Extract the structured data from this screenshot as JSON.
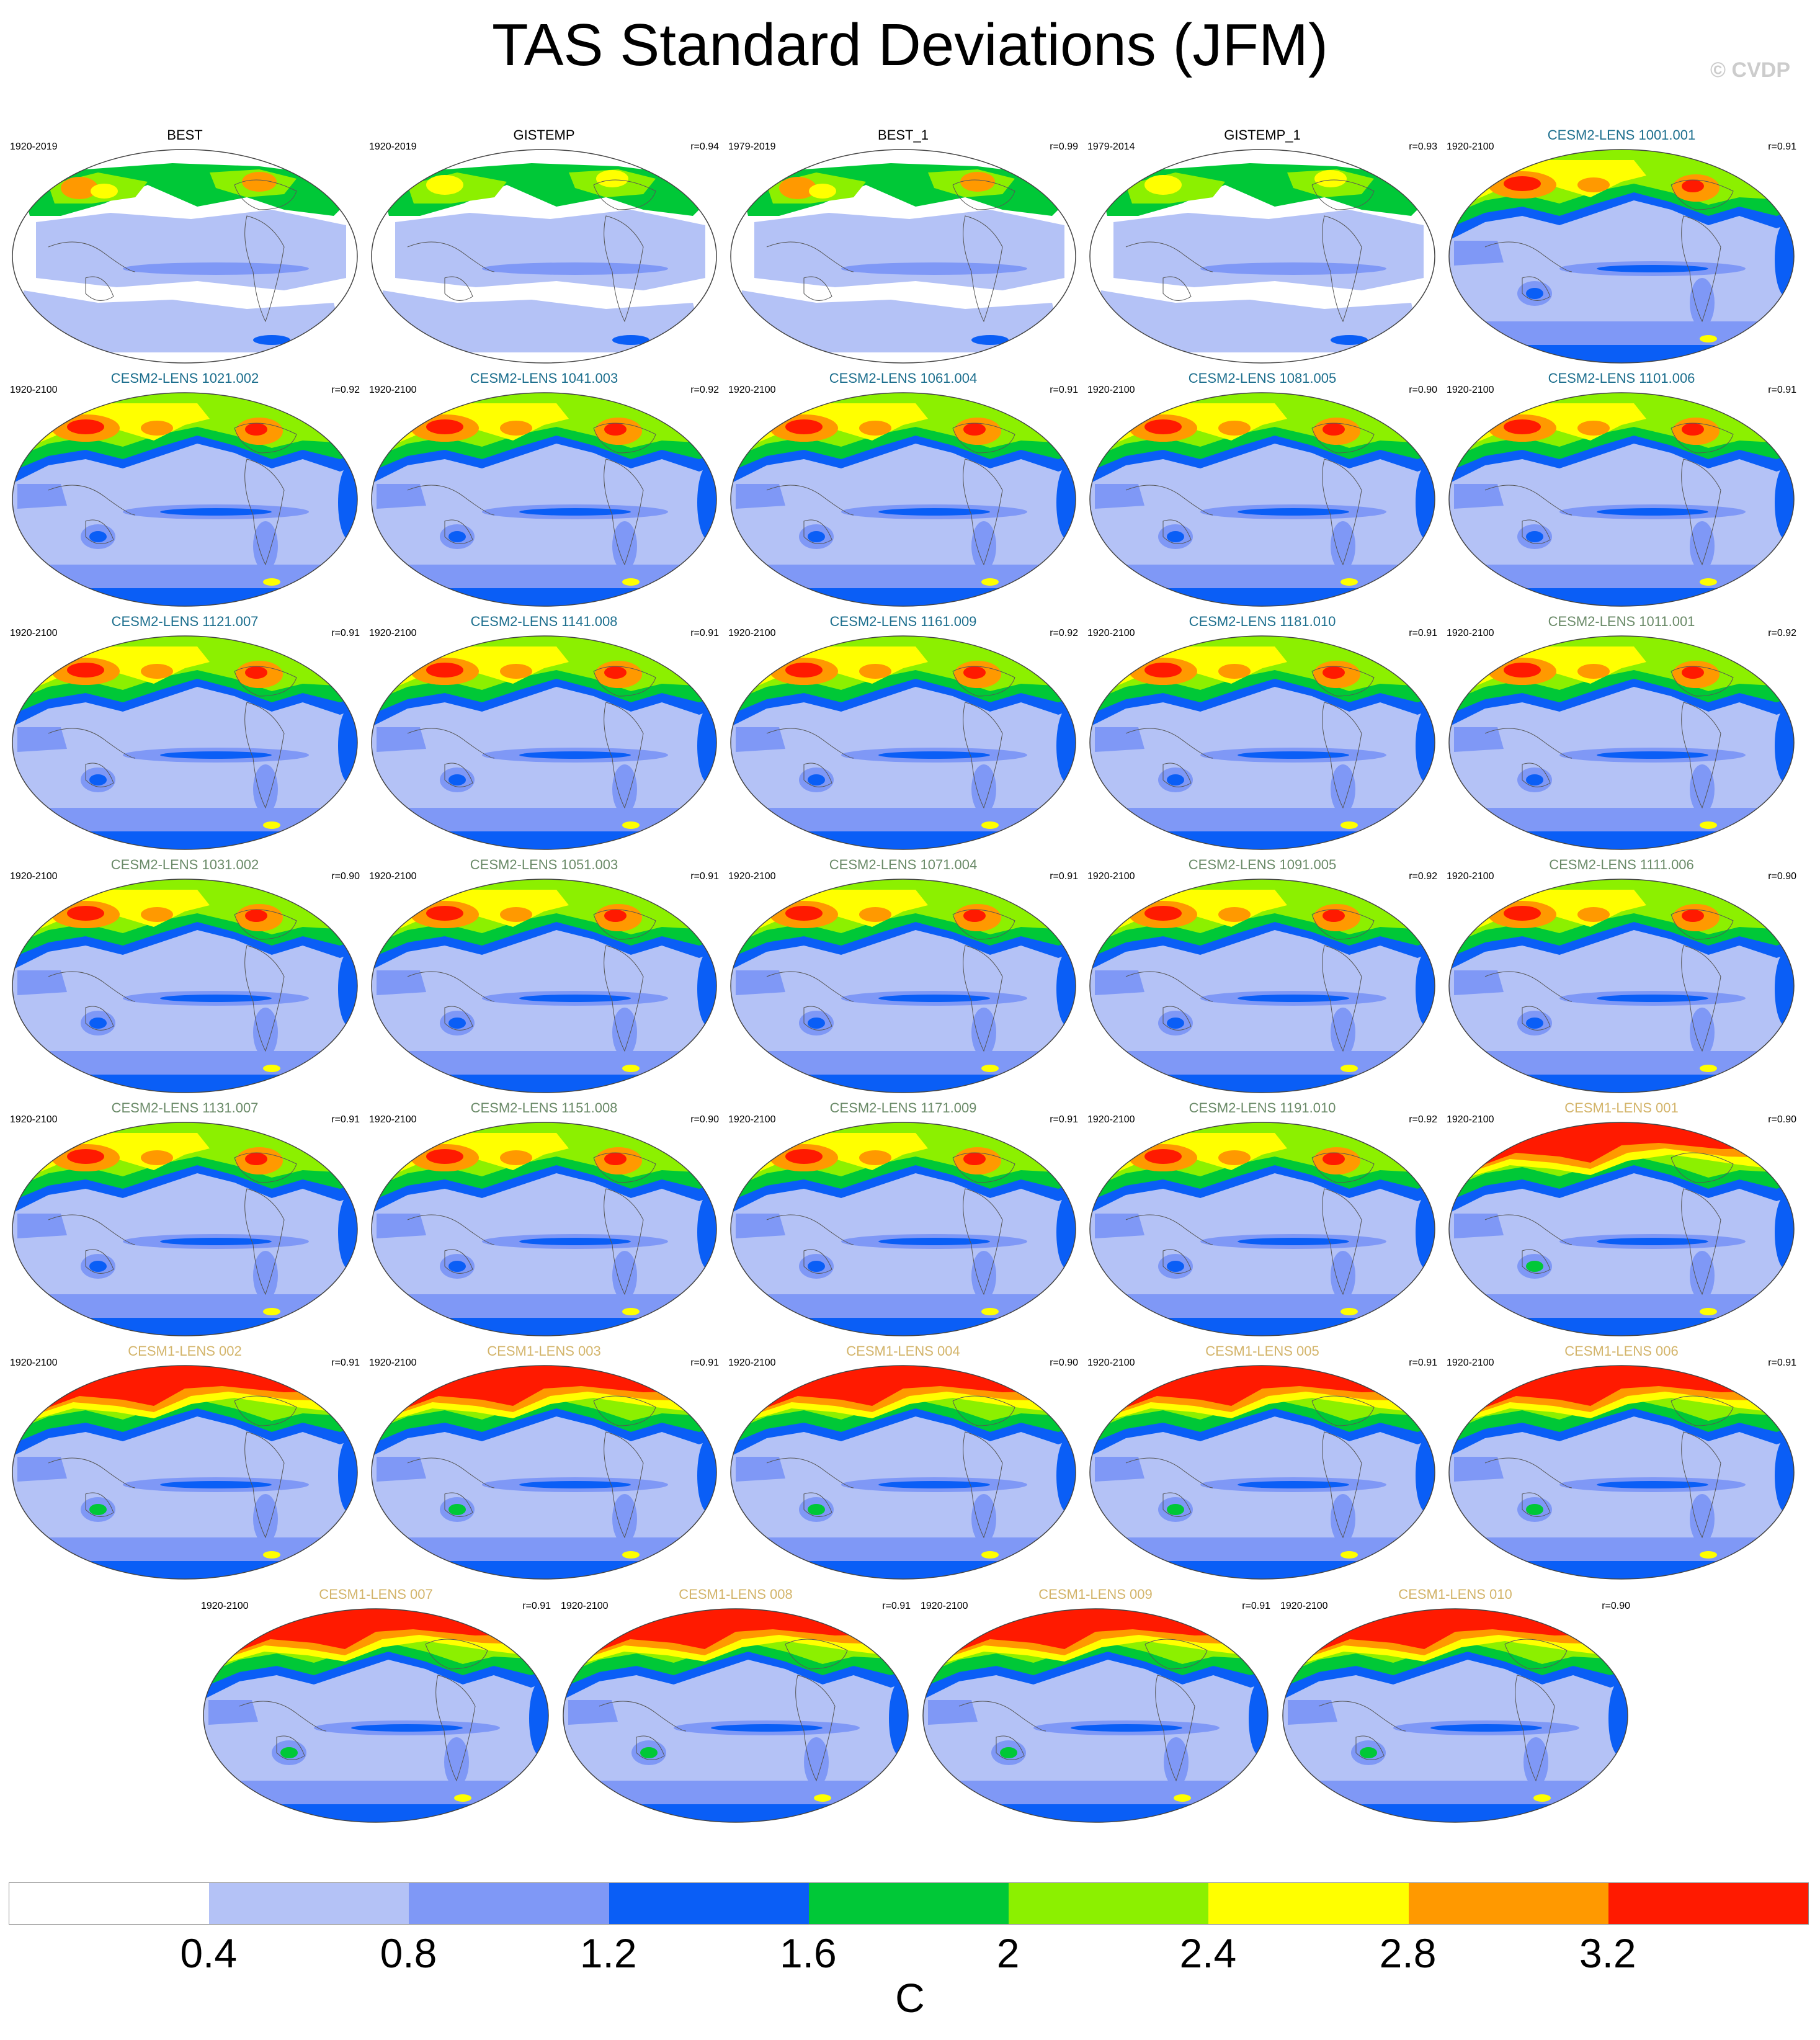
{
  "title": "TAS Standard Deviations (JFM)",
  "watermark": "© CVDP",
  "colorbar": {
    "colors": [
      "#ffffff",
      "#b4c2f6",
      "#7f98f6",
      "#0a5ef6",
      "#00c837",
      "#8cf000",
      "#ffff00",
      "#ff9900",
      "#ff1a00"
    ],
    "tick_labels": [
      "0.4",
      "0.8",
      "1.2",
      "1.6",
      "2",
      "2.4",
      "2.8",
      "3.2"
    ],
    "units": "C"
  },
  "title_colors": {
    "obs": "#000000",
    "cesm2_smbb": "#1d6f8e",
    "cesm2_cmip6": "#6a8a68",
    "cesm1": "#d3b46a"
  },
  "panels": [
    {
      "title": "BEST",
      "period": "1920-2019",
      "corr": "",
      "group": "obs",
      "style": "obs"
    },
    {
      "title": "GISTEMP",
      "period": "1920-2019",
      "corr": "r=0.94",
      "group": "obs",
      "style": "obs2"
    },
    {
      "title": "BEST_1",
      "period": "1979-2019",
      "corr": "r=0.99",
      "group": "obs",
      "style": "obs"
    },
    {
      "title": "GISTEMP_1",
      "period": "1979-2014",
      "corr": "r=0.93",
      "group": "obs",
      "style": "obs2"
    },
    {
      "title": "CESM2-LENS 1001.001",
      "period": "1920-2100",
      "corr": "r=0.91",
      "group": "cesm2_smbb",
      "style": "c2"
    },
    {
      "title": "CESM2-LENS 1021.002",
      "period": "1920-2100",
      "corr": "r=0.92",
      "group": "cesm2_smbb",
      "style": "c2"
    },
    {
      "title": "CESM2-LENS 1041.003",
      "period": "1920-2100",
      "corr": "r=0.92",
      "group": "cesm2_smbb",
      "style": "c2"
    },
    {
      "title": "CESM2-LENS 1061.004",
      "period": "1920-2100",
      "corr": "r=0.91",
      "group": "cesm2_smbb",
      "style": "c2"
    },
    {
      "title": "CESM2-LENS 1081.005",
      "period": "1920-2100",
      "corr": "r=0.90",
      "group": "cesm2_smbb",
      "style": "c2"
    },
    {
      "title": "CESM2-LENS 1101.006",
      "period": "1920-2100",
      "corr": "r=0.91",
      "group": "cesm2_smbb",
      "style": "c2"
    },
    {
      "title": "CESM2-LENS 1121.007",
      "period": "1920-2100",
      "corr": "r=0.91",
      "group": "cesm2_smbb",
      "style": "c2"
    },
    {
      "title": "CESM2-LENS 1141.008",
      "period": "1920-2100",
      "corr": "r=0.91",
      "group": "cesm2_smbb",
      "style": "c2"
    },
    {
      "title": "CESM2-LENS 1161.009",
      "period": "1920-2100",
      "corr": "r=0.92",
      "group": "cesm2_smbb",
      "style": "c2"
    },
    {
      "title": "CESM2-LENS 1181.010",
      "period": "1920-2100",
      "corr": "r=0.91",
      "group": "cesm2_smbb",
      "style": "c2"
    },
    {
      "title": "CESM2-LENS 1011.001",
      "period": "1920-2100",
      "corr": "r=0.92",
      "group": "cesm2_cmip6",
      "style": "c2"
    },
    {
      "title": "CESM2-LENS 1031.002",
      "period": "1920-2100",
      "corr": "r=0.90",
      "group": "cesm2_cmip6",
      "style": "c2"
    },
    {
      "title": "CESM2-LENS 1051.003",
      "period": "1920-2100",
      "corr": "r=0.91",
      "group": "cesm2_cmip6",
      "style": "c2"
    },
    {
      "title": "CESM2-LENS 1071.004",
      "period": "1920-2100",
      "corr": "r=0.91",
      "group": "cesm2_cmip6",
      "style": "c2"
    },
    {
      "title": "CESM2-LENS 1091.005",
      "period": "1920-2100",
      "corr": "r=0.92",
      "group": "cesm2_cmip6",
      "style": "c2"
    },
    {
      "title": "CESM2-LENS 1111.006",
      "period": "1920-2100",
      "corr": "r=0.90",
      "group": "cesm2_cmip6",
      "style": "c2"
    },
    {
      "title": "CESM2-LENS 1131.007",
      "period": "1920-2100",
      "corr": "r=0.91",
      "group": "cesm2_cmip6",
      "style": "c2"
    },
    {
      "title": "CESM2-LENS 1151.008",
      "period": "1920-2100",
      "corr": "r=0.90",
      "group": "cesm2_cmip6",
      "style": "c2"
    },
    {
      "title": "CESM2-LENS 1171.009",
      "period": "1920-2100",
      "corr": "r=0.91",
      "group": "cesm2_cmip6",
      "style": "c2"
    },
    {
      "title": "CESM2-LENS 1191.010",
      "period": "1920-2100",
      "corr": "r=0.92",
      "group": "cesm2_cmip6",
      "style": "c2"
    },
    {
      "title": "CESM1-LENS 001",
      "period": "1920-2100",
      "corr": "r=0.90",
      "group": "cesm1",
      "style": "c1"
    },
    {
      "title": "CESM1-LENS 002",
      "period": "1920-2100",
      "corr": "r=0.91",
      "group": "cesm1",
      "style": "c1"
    },
    {
      "title": "CESM1-LENS 003",
      "period": "1920-2100",
      "corr": "r=0.91",
      "group": "cesm1",
      "style": "c1"
    },
    {
      "title": "CESM1-LENS 004",
      "period": "1920-2100",
      "corr": "r=0.90",
      "group": "cesm1",
      "style": "c1"
    },
    {
      "title": "CESM1-LENS 005",
      "period": "1920-2100",
      "corr": "r=0.91",
      "group": "cesm1",
      "style": "c1"
    },
    {
      "title": "CESM1-LENS 006",
      "period": "1920-2100",
      "corr": "r=0.91",
      "group": "cesm1",
      "style": "c1"
    },
    {
      "title": "CESM1-LENS 007",
      "period": "1920-2100",
      "corr": "r=0.91",
      "group": "cesm1",
      "style": "c1"
    },
    {
      "title": "CESM1-LENS 008",
      "period": "1920-2100",
      "corr": "r=0.91",
      "group": "cesm1",
      "style": "c1"
    },
    {
      "title": "CESM1-LENS 009",
      "period": "1920-2100",
      "corr": "r=0.91",
      "group": "cesm1",
      "style": "c1"
    },
    {
      "title": "CESM1-LENS 010",
      "period": "1920-2100",
      "corr": "r=0.90",
      "group": "cesm1",
      "style": "c1"
    }
  ]
}
